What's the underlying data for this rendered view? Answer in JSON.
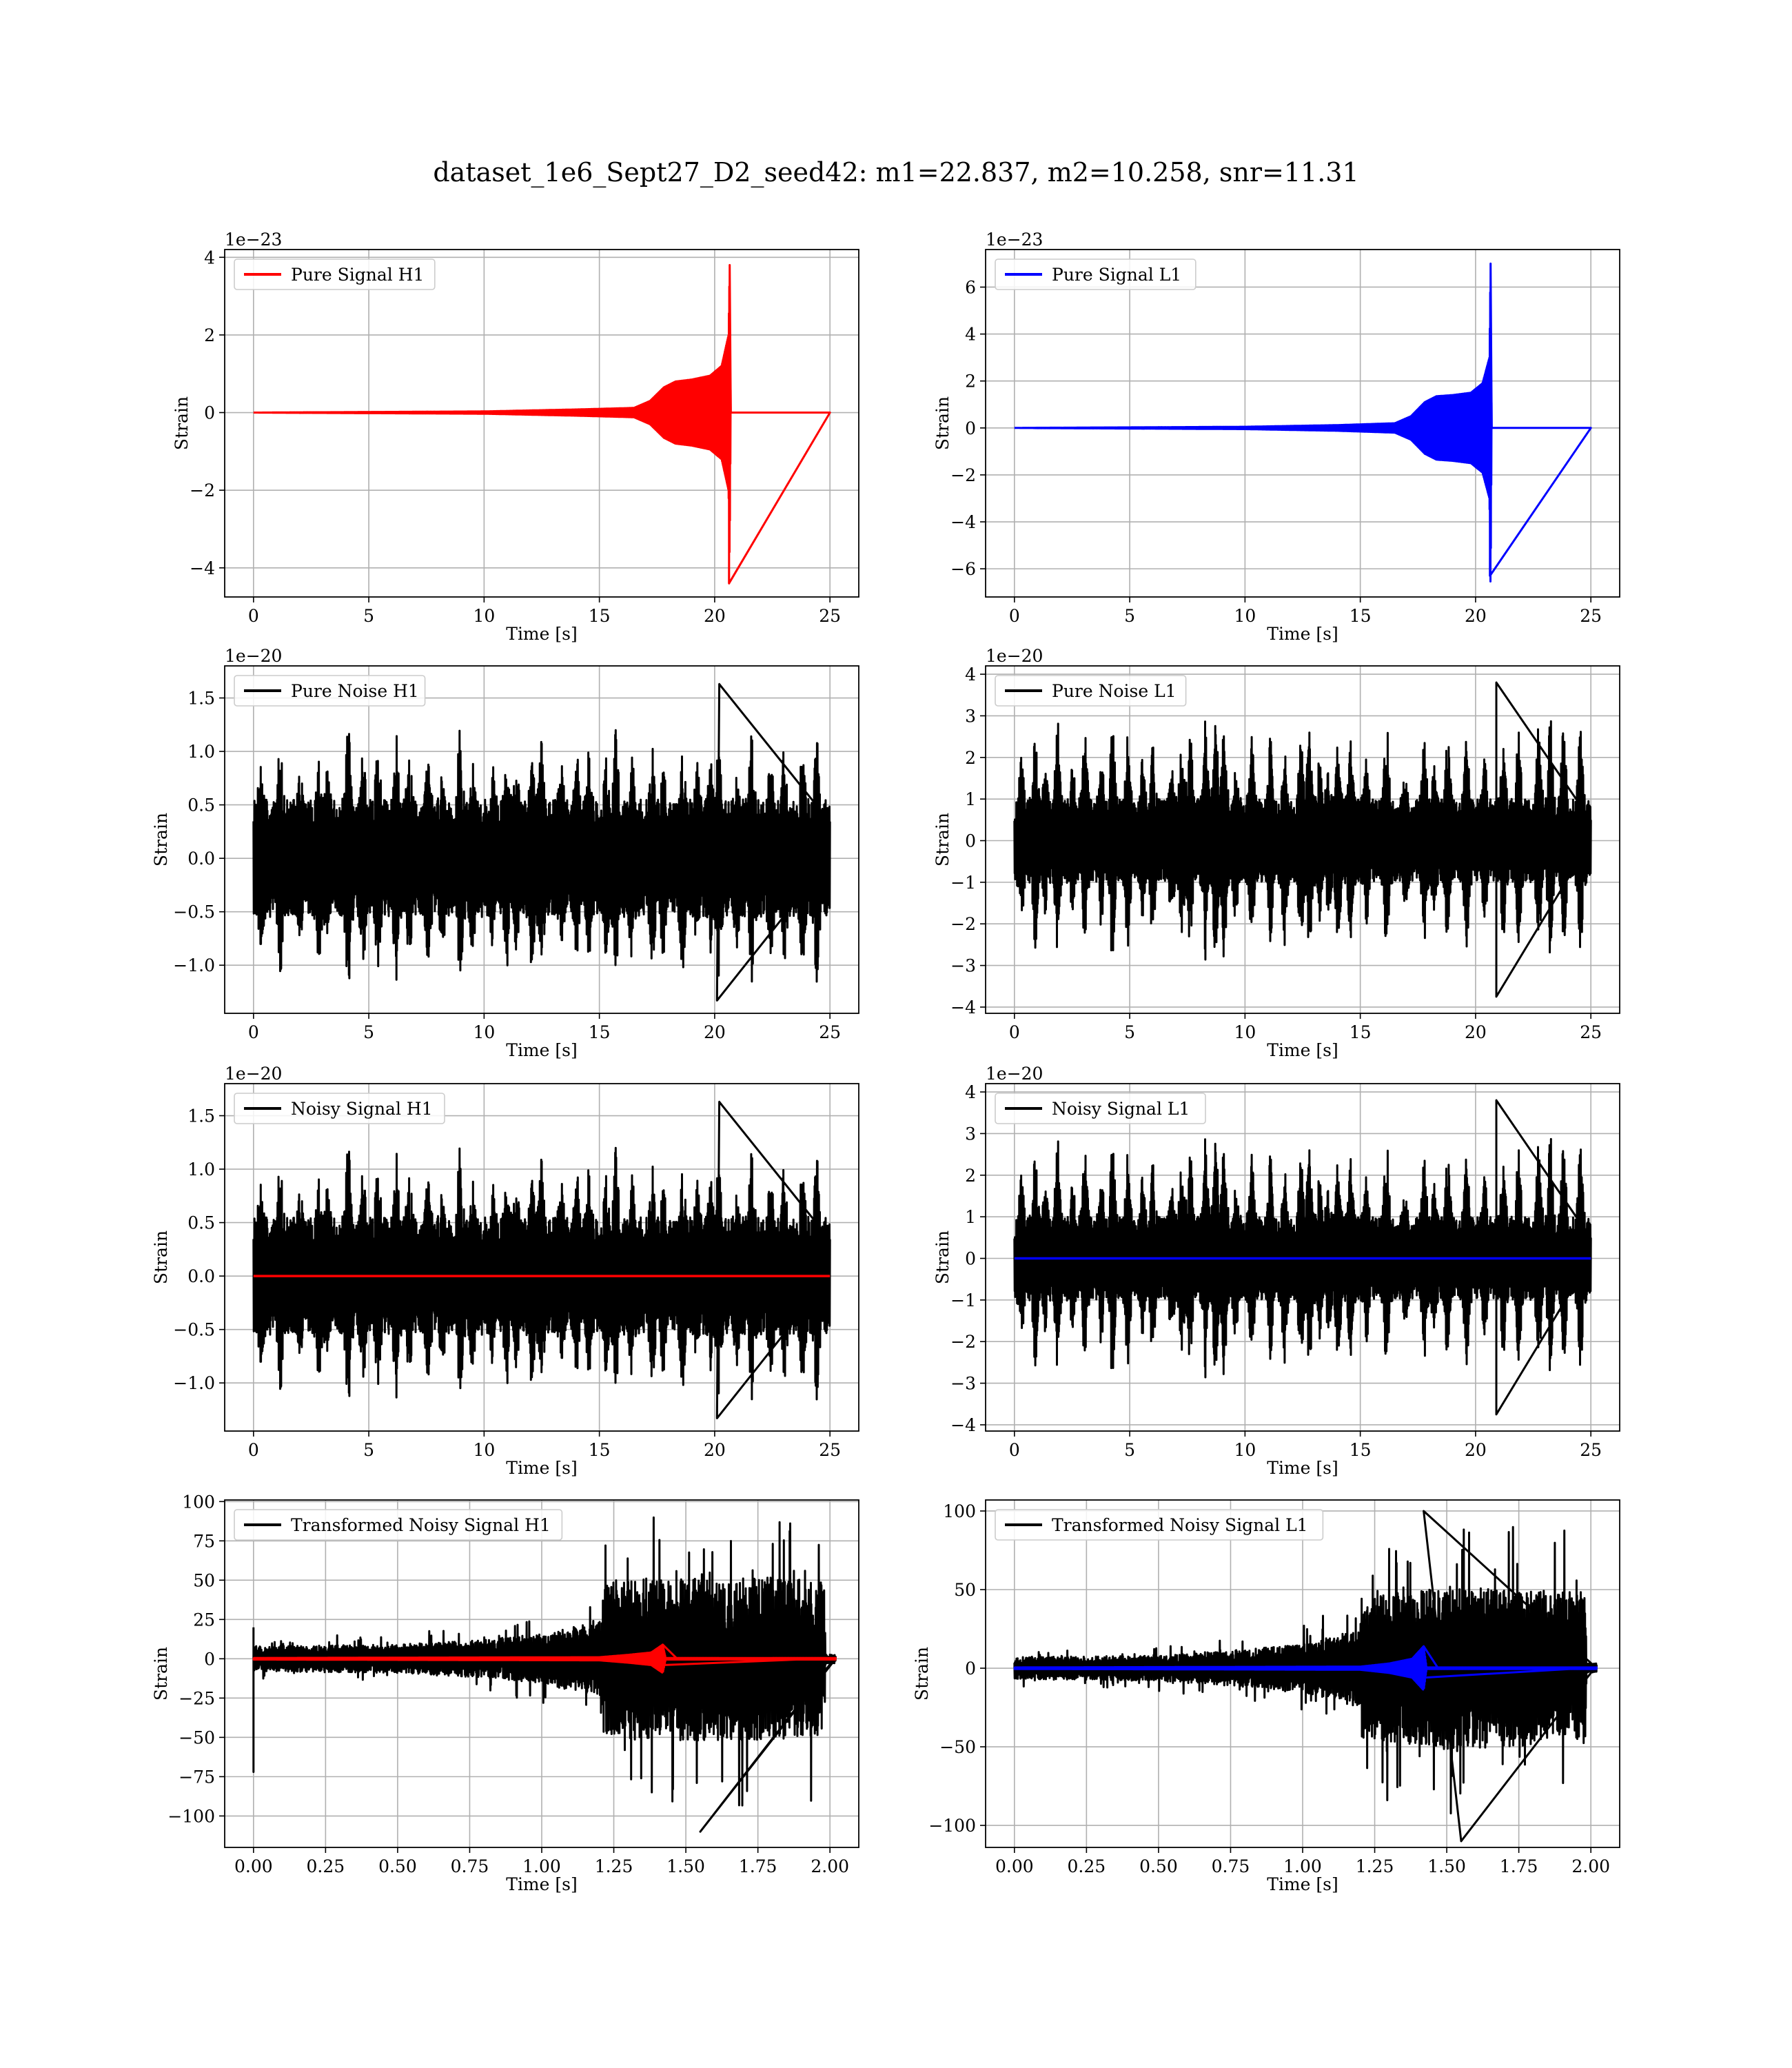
{
  "figure": {
    "title": "dataset_1e6_Sept27_D2_seed42: m1=22.837, m2=10.258, snr=11.31"
  },
  "chart_data": [
    {
      "type": "line",
      "panel": "pure-signal-h1",
      "xlabel": "Time [s]",
      "ylabel": "Strain",
      "scale_label": "1e−23",
      "xlim": [
        -1.25,
        26.25
      ],
      "ylim": [
        -4.75,
        4.2
      ],
      "xticks": [
        0,
        5,
        10,
        15,
        20,
        25
      ],
      "xtick_labels": [
        "0",
        "5",
        "10",
        "15",
        "20",
        "25"
      ],
      "yticks": [
        -4,
        -2,
        0,
        2,
        4
      ],
      "ytick_labels": [
        "−4",
        "−2",
        "0",
        "2",
        "4"
      ],
      "grid": true,
      "legend": "top-left",
      "series": [
        {
          "name": "Pure Signal H1",
          "color": "#ff0000",
          "kind": "chirp",
          "x_start": 0,
          "x_end": 25,
          "merger": 20.65,
          "envelope_points": [
            [
              0,
              0.0
            ],
            [
              10,
              0.03
            ],
            [
              14,
              0.08
            ],
            [
              16.5,
              0.12
            ],
            [
              17.2,
              0.3
            ],
            [
              17.8,
              0.65
            ],
            [
              18.3,
              0.8
            ],
            [
              19.0,
              0.85
            ],
            [
              19.8,
              0.95
            ],
            [
              20.3,
              1.2
            ],
            [
              20.6,
              2.0
            ],
            [
              20.65,
              3.8
            ],
            [
              20.7,
              0.0
            ],
            [
              25,
              0.0
            ]
          ],
          "min_point": [
            20.62,
            -4.4
          ]
        }
      ]
    },
    {
      "type": "line",
      "panel": "pure-signal-l1",
      "xlabel": "Time [s]",
      "ylabel": "Strain",
      "scale_label": "1e−23",
      "xlim": [
        -1.25,
        26.25
      ],
      "ylim": [
        -7.2,
        7.6
      ],
      "xticks": [
        0,
        5,
        10,
        15,
        20,
        25
      ],
      "xtick_labels": [
        "0",
        "5",
        "10",
        "15",
        "20",
        "25"
      ],
      "yticks": [
        -6,
        -4,
        -2,
        0,
        2,
        4,
        6
      ],
      "ytick_labels": [
        "−6",
        "−4",
        "−2",
        "0",
        "2",
        "4",
        "6"
      ],
      "grid": true,
      "legend": "top-left",
      "series": [
        {
          "name": "Pure Signal L1",
          "color": "#0000ff",
          "kind": "chirp",
          "x_start": 0,
          "x_end": 25,
          "merger": 20.65,
          "envelope_points": [
            [
              0,
              0.0
            ],
            [
              10,
              0.05
            ],
            [
              14,
              0.12
            ],
            [
              16.5,
              0.2
            ],
            [
              17.2,
              0.5
            ],
            [
              17.8,
              1.1
            ],
            [
              18.3,
              1.35
            ],
            [
              19.0,
              1.4
            ],
            [
              19.8,
              1.5
            ],
            [
              20.3,
              1.9
            ],
            [
              20.6,
              3.0
            ],
            [
              20.65,
              7.0
            ],
            [
              20.7,
              0.0
            ],
            [
              25,
              0.0
            ]
          ],
          "min_point": [
            20.62,
            -6.3
          ]
        }
      ]
    },
    {
      "type": "line",
      "panel": "pure-noise-h1",
      "xlabel": "Time [s]",
      "ylabel": "Strain",
      "scale_label": "1e−20",
      "xlim": [
        -1.25,
        26.25
      ],
      "ylim": [
        -1.45,
        1.8
      ],
      "xticks": [
        0,
        5,
        10,
        15,
        20,
        25
      ],
      "xtick_labels": [
        "0",
        "5",
        "10",
        "15",
        "20",
        "25"
      ],
      "yticks": [
        -1.0,
        -0.5,
        0.0,
        0.5,
        1.0,
        1.5
      ],
      "ytick_labels": [
        "−1.0",
        "−0.5",
        "0.0",
        "0.5",
        "1.0",
        "1.5"
      ],
      "grid": true,
      "legend": "top-left",
      "series": [
        {
          "name": "Pure Noise H1",
          "color": "#000000",
          "kind": "noise",
          "x_start": 0,
          "x_end": 25,
          "base_amplitude": 0.55,
          "peak_amplitude": 1.3,
          "max_point": [
            20.2,
            1.63
          ],
          "min_point": [
            20.1,
            -1.33
          ],
          "seed": 7
        }
      ]
    },
    {
      "type": "line",
      "panel": "pure-noise-l1",
      "xlabel": "Time [s]",
      "ylabel": "Strain",
      "scale_label": "1e−20",
      "xlim": [
        -1.25,
        26.25
      ],
      "ylim": [
        -4.15,
        4.2
      ],
      "xticks": [
        0,
        5,
        10,
        15,
        20,
        25
      ],
      "xtick_labels": [
        "0",
        "5",
        "10",
        "15",
        "20",
        "25"
      ],
      "yticks": [
        -4,
        -3,
        -2,
        -1,
        0,
        1,
        2,
        3,
        4
      ],
      "ytick_labels": [
        "−4",
        "−3",
        "−2",
        "−1",
        "0",
        "1",
        "2",
        "3",
        "4"
      ],
      "grid": true,
      "legend": "top-left",
      "series": [
        {
          "name": "Pure Noise L1",
          "color": "#000000",
          "kind": "noise",
          "x_start": 0,
          "x_end": 25,
          "base_amplitude": 1.0,
          "peak_amplitude": 3.0,
          "max_point": [
            20.9,
            3.8
          ],
          "min_point": [
            20.9,
            -3.75
          ],
          "seed": 13
        }
      ]
    },
    {
      "type": "line",
      "panel": "noisy-signal-h1",
      "xlabel": "Time [s]",
      "ylabel": "Strain",
      "scale_label": "1e−20",
      "xlim": [
        -1.25,
        26.25
      ],
      "ylim": [
        -1.45,
        1.8
      ],
      "xticks": [
        0,
        5,
        10,
        15,
        20,
        25
      ],
      "xtick_labels": [
        "0",
        "5",
        "10",
        "15",
        "20",
        "25"
      ],
      "yticks": [
        -1.0,
        -0.5,
        0.0,
        0.5,
        1.0,
        1.5
      ],
      "ytick_labels": [
        "−1.0",
        "−0.5",
        "0.0",
        "0.5",
        "1.0",
        "1.5"
      ],
      "grid": true,
      "legend": "top-left",
      "series": [
        {
          "name": "Noisy Signal H1",
          "color": "#000000",
          "kind": "noise",
          "x_start": 0,
          "x_end": 25,
          "base_amplitude": 0.55,
          "peak_amplitude": 1.3,
          "max_point": [
            20.2,
            1.63
          ],
          "min_point": [
            20.1,
            -1.33
          ],
          "seed": 7
        },
        {
          "color": "#ff0000",
          "kind": "flat",
          "x_start": 0,
          "x_end": 25,
          "value": 0.0
        }
      ]
    },
    {
      "type": "line",
      "panel": "noisy-signal-l1",
      "xlabel": "Time [s]",
      "ylabel": "Strain",
      "scale_label": "1e−20",
      "xlim": [
        -1.25,
        26.25
      ],
      "ylim": [
        -4.15,
        4.2
      ],
      "xticks": [
        0,
        5,
        10,
        15,
        20,
        25
      ],
      "xtick_labels": [
        "0",
        "5",
        "10",
        "15",
        "20",
        "25"
      ],
      "yticks": [
        -4,
        -3,
        -2,
        -1,
        0,
        1,
        2,
        3,
        4
      ],
      "ytick_labels": [
        "−4",
        "−3",
        "−2",
        "−1",
        "0",
        "1",
        "2",
        "3",
        "4"
      ],
      "grid": true,
      "legend": "top-left",
      "series": [
        {
          "name": "Noisy Signal L1",
          "color": "#000000",
          "kind": "noise",
          "x_start": 0,
          "x_end": 25,
          "base_amplitude": 1.0,
          "peak_amplitude": 3.0,
          "max_point": [
            20.9,
            3.8
          ],
          "min_point": [
            20.9,
            -3.75
          ],
          "seed": 13
        },
        {
          "color": "#0000ff",
          "kind": "flat",
          "x_start": 0,
          "x_end": 25,
          "value": 0.0
        }
      ]
    },
    {
      "type": "line",
      "panel": "transformed-noisy-signal-h1",
      "xlabel": "Time [s]",
      "ylabel": "Strain",
      "scale_label": "",
      "xlim": [
        -0.1,
        2.1
      ],
      "ylim": [
        -120,
        101
      ],
      "xticks": [
        0.0,
        0.25,
        0.5,
        0.75,
        1.0,
        1.25,
        1.5,
        1.75,
        2.0
      ],
      "xtick_labels": [
        "0.00",
        "0.25",
        "0.50",
        "0.75",
        "1.00",
        "1.25",
        "1.50",
        "1.75",
        "2.00"
      ],
      "yticks": [
        -100,
        -75,
        -50,
        -25,
        0,
        25,
        50,
        75,
        100
      ],
      "ytick_labels": [
        "−100",
        "−75",
        "−50",
        "−25",
        "0",
        "25",
        "50",
        "75",
        "100"
      ],
      "grid": true,
      "legend": "top-left",
      "series": [
        {
          "name": "Transformed Noisy Signal H1",
          "color": "#000000",
          "kind": "transformed",
          "x_start": 0,
          "x_end": 2.02,
          "envelope_points": [
            [
              0.0,
              8
            ],
            [
              0.5,
              9
            ],
            [
              0.8,
              12
            ],
            [
              1.0,
              16
            ],
            [
              1.1,
              20
            ],
            [
              1.2,
              25
            ],
            [
              1.22,
              50
            ],
            [
              1.5,
              52
            ],
            [
              1.75,
              52
            ],
            [
              1.98,
              50
            ],
            [
              1.985,
              3
            ],
            [
              2.02,
              3
            ]
          ],
          "min_point": [
            1.55,
            -110
          ],
          "extra_point": [
            0.0,
            -72
          ],
          "seed": 21
        },
        {
          "color": "#ff0000",
          "kind": "chirp",
          "x_start": 0,
          "x_end": 2.02,
          "merger": 1.42,
          "envelope_points": [
            [
              0,
              0.5
            ],
            [
              1.2,
              1.0
            ],
            [
              1.3,
              2.5
            ],
            [
              1.38,
              4
            ],
            [
              1.42,
              9
            ],
            [
              1.43,
              0.5
            ],
            [
              2.02,
              0.5
            ]
          ],
          "min_point": [
            1.42,
            -4
          ]
        }
      ]
    },
    {
      "type": "line",
      "panel": "transformed-noisy-signal-l1",
      "xlabel": "Time [s]",
      "ylabel": "Strain",
      "scale_label": "",
      "xlim": [
        -0.1,
        2.1
      ],
      "ylim": [
        -114,
        107
      ],
      "xticks": [
        0.0,
        0.25,
        0.5,
        0.75,
        1.0,
        1.25,
        1.5,
        1.75,
        2.0
      ],
      "xtick_labels": [
        "0.00",
        "0.25",
        "0.50",
        "0.75",
        "1.00",
        "1.25",
        "1.50",
        "1.75",
        "2.00"
      ],
      "yticks": [
        -100,
        -50,
        0,
        50,
        100
      ],
      "ytick_labels": [
        "−100",
        "−50",
        "0",
        "50",
        "100"
      ],
      "grid": true,
      "legend": "top-left",
      "series": [
        {
          "name": "Transformed Noisy Signal L1",
          "color": "#000000",
          "kind": "transformed",
          "x_start": 0,
          "x_end": 2.02,
          "envelope_points": [
            [
              0.0,
              7
            ],
            [
              0.5,
              8
            ],
            [
              0.8,
              12
            ],
            [
              1.0,
              15
            ],
            [
              1.1,
              20
            ],
            [
              1.2,
              25
            ],
            [
              1.22,
              45
            ],
            [
              1.5,
              52
            ],
            [
              1.75,
              50
            ],
            [
              1.98,
              48
            ],
            [
              1.985,
              3
            ],
            [
              2.02,
              3
            ]
          ],
          "min_point": [
            1.55,
            -110
          ],
          "max_point": [
            1.42,
            100
          ],
          "seed": 33
        },
        {
          "color": "#0000ff",
          "kind": "chirp",
          "x_start": 0,
          "x_end": 2.02,
          "merger": 1.42,
          "envelope_points": [
            [
              0,
              0.5
            ],
            [
              1.2,
              1.0
            ],
            [
              1.3,
              3
            ],
            [
              1.38,
              6
            ],
            [
              1.42,
              14
            ],
            [
              1.43,
              0.5
            ],
            [
              2.02,
              0.5
            ]
          ],
          "min_point": [
            1.42,
            -6
          ]
        }
      ]
    }
  ]
}
